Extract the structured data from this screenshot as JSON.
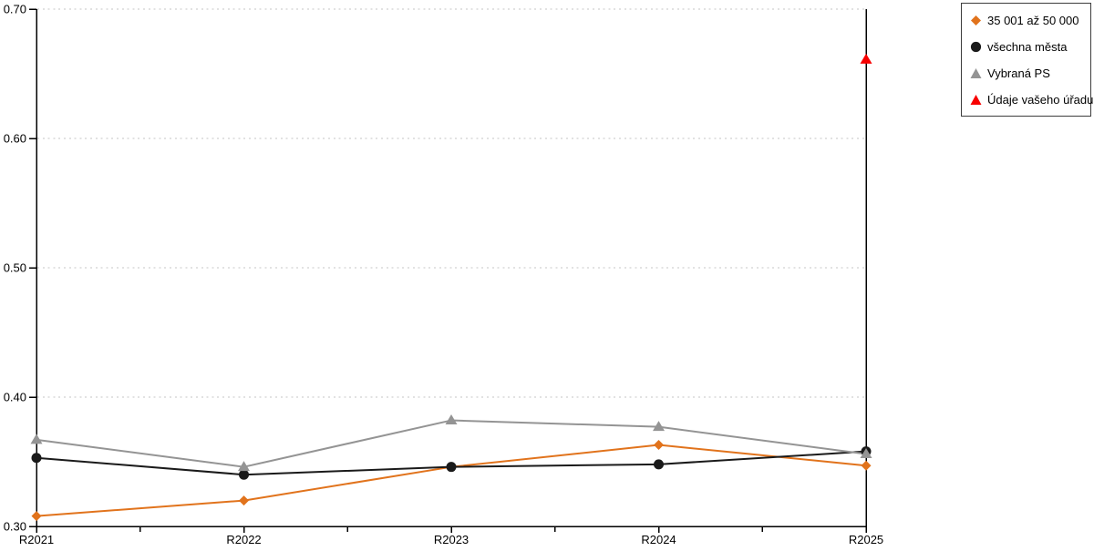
{
  "chart_data": {
    "type": "line",
    "title": "",
    "xlabel": "",
    "ylabel": "",
    "categories": [
      "R2021",
      "R2022",
      "R2023",
      "R2024",
      "R2025"
    ],
    "series": [
      {
        "name": "35 001 až 50 000",
        "marker": "diamond",
        "color": "#E1731C",
        "values": [
          0.308,
          0.32,
          0.346,
          0.363,
          0.347
        ]
      },
      {
        "name": "všechna města",
        "marker": "circle",
        "color": "#1A1A1A",
        "values": [
          0.353,
          0.34,
          0.346,
          0.348,
          0.358
        ]
      },
      {
        "name": "Vybraná PS",
        "marker": "triangle",
        "color": "#949494",
        "values": [
          0.367,
          0.346,
          0.382,
          0.377,
          0.356
        ]
      },
      {
        "name": "Údaje vašeho úřadu",
        "marker": "triangle",
        "color": "#F80000",
        "values": [
          null,
          null,
          null,
          null,
          0.661
        ]
      }
    ],
    "ylim": [
      0.3,
      0.7
    ],
    "ytick_step": 0.1,
    "ytick_labels": [
      "0.30",
      "0.40",
      "0.50",
      "0.60",
      "0.70"
    ],
    "grid": "horizontal-dotted",
    "legend_position": "outside-top-right"
  },
  "colors": {
    "background": "#FFFFFF",
    "grid": "#C6C6C6",
    "axis": "#000000",
    "text": "#000000",
    "legend_border": "#3D3D3D"
  }
}
